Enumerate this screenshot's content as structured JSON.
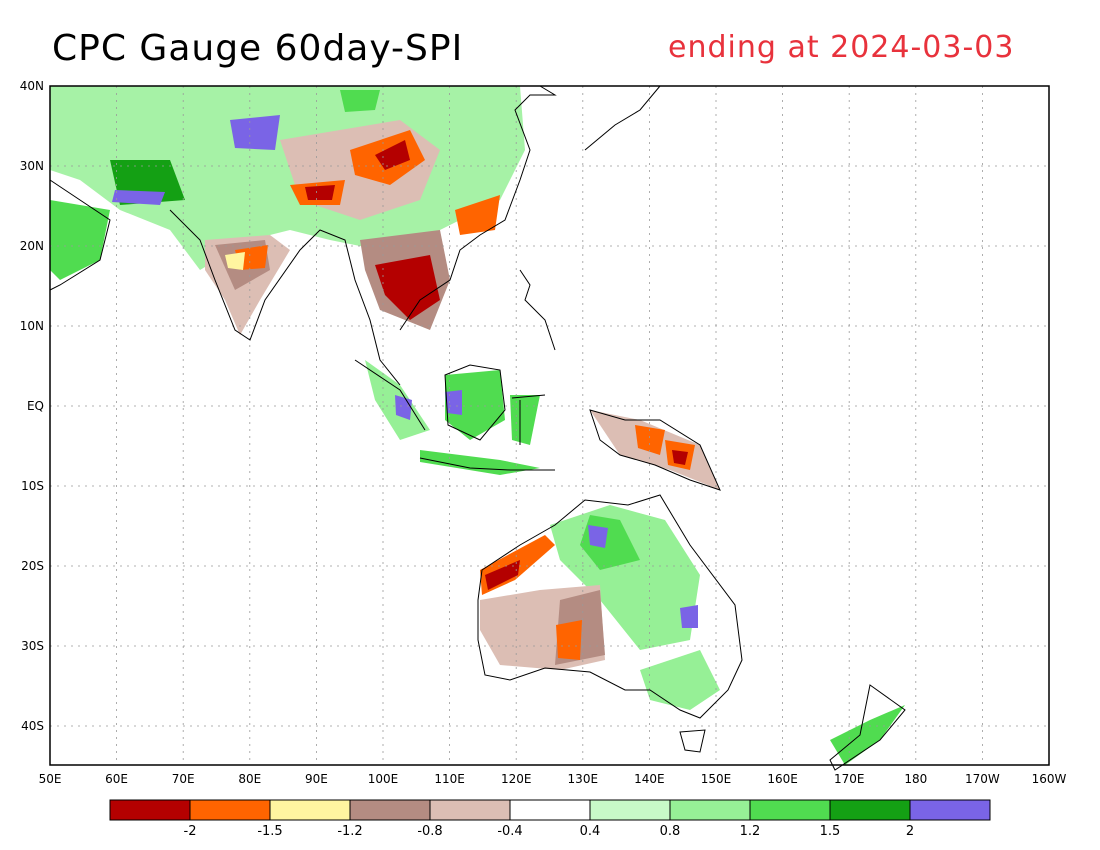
{
  "title": "CPC Gauge 60day-SPI",
  "subtitle": "ending at 2024-03-03",
  "subtitle_color": "#e8323c",
  "lat_ticks": [
    "40N",
    "30N",
    "20N",
    "10N",
    "EQ",
    "10S",
    "20S",
    "30S",
    "40S"
  ],
  "lon_ticks": [
    "50E",
    "60E",
    "70E",
    "80E",
    "90E",
    "100E",
    "110E",
    "120E",
    "130E",
    "140E",
    "150E",
    "160E",
    "170E",
    "180",
    "170W",
    "160W"
  ],
  "colorbar": {
    "colors": [
      "#b40000",
      "#ff6400",
      "#fff5a0",
      "#b48c82",
      "#dcbeb4",
      "#ffffff",
      "#c8fac8",
      "#96f096",
      "#50dc50",
      "#14a014",
      "#7a64e6"
    ],
    "labels": [
      "-2",
      "-1.5",
      "-1.2",
      "-0.8",
      "-0.4",
      "0.4",
      "0.8",
      "1.2",
      "1.5",
      "2"
    ]
  }
}
